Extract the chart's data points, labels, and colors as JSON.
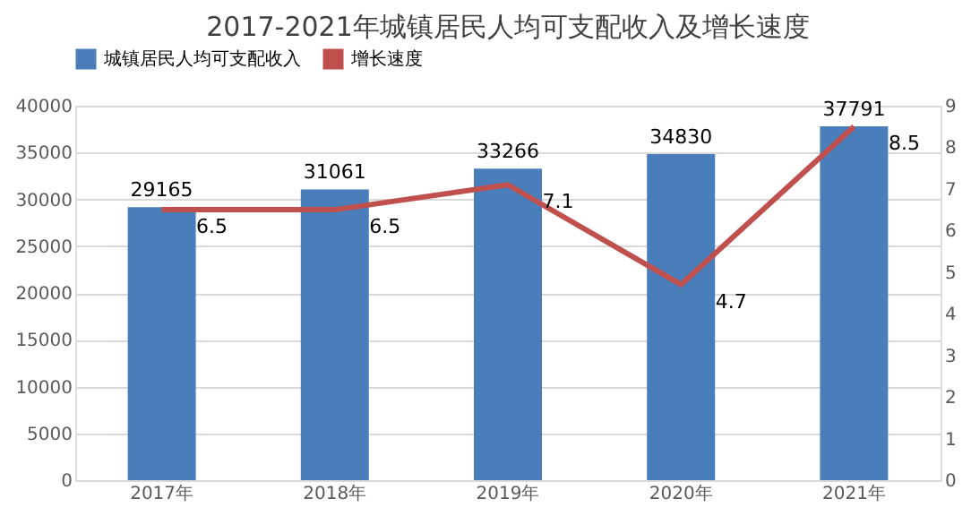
{
  "chart_data": {
    "type": "bar",
    "title": "2017-2021年城镇居民人均可支配收入及增长速度",
    "categories": [
      "2017年",
      "2018年",
      "2019年",
      "2020年",
      "2021年"
    ],
    "series": [
      {
        "name": "城镇居民人均可支配收入",
        "color": "#4a7ebb",
        "values": [
          29165,
          31061,
          33266,
          34830,
          37791
        ]
      },
      {
        "name": "增长速度",
        "type": "line",
        "axis": "y2",
        "color": "#c0504d",
        "values": [
          6.5,
          6.5,
          7.1,
          4.7,
          8.5
        ]
      }
    ],
    "ylim": [
      0,
      40000
    ],
    "yticks": [
      0,
      5000,
      10000,
      15000,
      20000,
      25000,
      30000,
      35000,
      40000
    ],
    "y2lim": [
      0,
      9
    ],
    "y2ticks": [
      0,
      1,
      2,
      3,
      4,
      5,
      6,
      7,
      8,
      9
    ],
    "grid": "y",
    "legend": "top",
    "data_labels": true,
    "marker": "none",
    "line_style": "solid"
  }
}
